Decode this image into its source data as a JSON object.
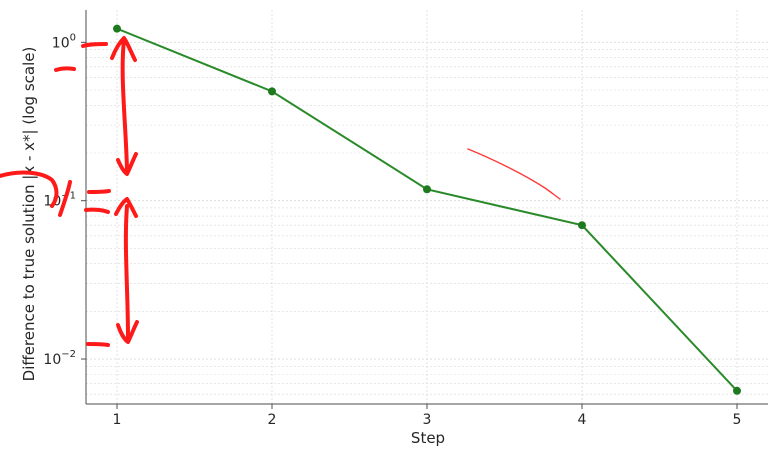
{
  "chart_data": {
    "type": "line",
    "title": "",
    "xlabel": "Step",
    "ylabel": "Difference to true solution |x - x*| (log scale)",
    "yscale": "log",
    "grid": true,
    "x": [
      1,
      2,
      3,
      4,
      5
    ],
    "series": [
      {
        "values": [
          1.22,
          0.49,
          0.118,
          0.07,
          0.0063
        ]
      }
    ],
    "xlim": [
      0.8,
      5.2
    ],
    "ylim": [
      0.0052,
      1.6
    ],
    "x_ticks": [
      "1",
      "2",
      "3",
      "4",
      "5"
    ],
    "y_ticks": [
      {
        "value": 1,
        "base": "10",
        "exp": "0"
      },
      {
        "value": 0.1,
        "base": "10",
        "exp": "−1"
      },
      {
        "value": 0.01,
        "base": "10",
        "exp": "−2"
      }
    ],
    "colors": {
      "line": "#2a8a2a",
      "marker": "#1f7a1f",
      "grid": "#d9d9d9",
      "annotation": "#ff1a1a",
      "annotation_thin": "#ff3a3a"
    }
  }
}
